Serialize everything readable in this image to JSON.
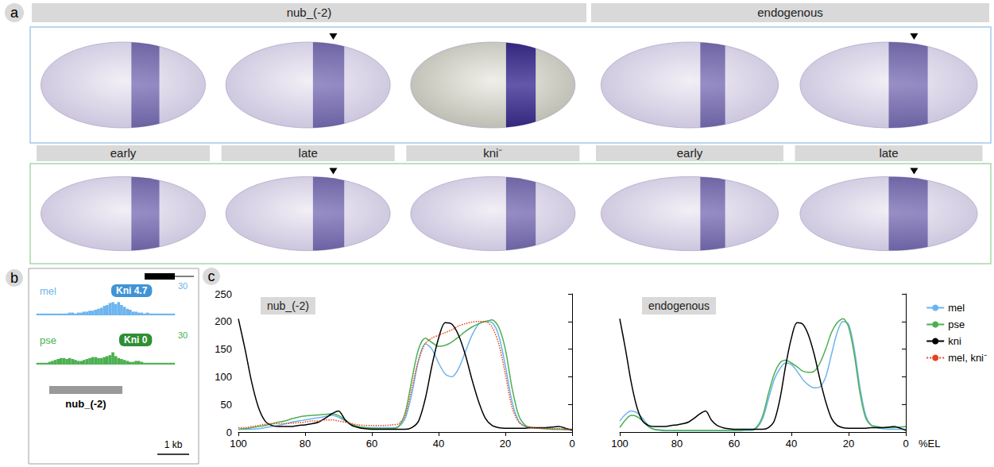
{
  "panels": {
    "a": {
      "letter": "a",
      "headers": [
        "nub_(-2)",
        "endogenous"
      ],
      "column_labels": [
        "early",
        "late",
        "kni⁻",
        "early",
        "late"
      ]
    },
    "b": {
      "letter": "b",
      "region_label": "nub_(-2)",
      "scale_label": "1 kb"
    },
    "c": {
      "letter": "c"
    }
  },
  "chart_data": [
    {
      "type": "bar",
      "title": "mel",
      "color": "#6cb4ee",
      "values": [
        1,
        1,
        1,
        1,
        1,
        1,
        1,
        1,
        1,
        1,
        1,
        2,
        2,
        1,
        2,
        2,
        3,
        3,
        4,
        4,
        5,
        6,
        7,
        9,
        10,
        12,
        13,
        11,
        13,
        10,
        8,
        6,
        5,
        3,
        3,
        2,
        2,
        1,
        2,
        1,
        1,
        1,
        1,
        1,
        1,
        1,
        1,
        1
      ],
      "ylim": [
        0,
        30
      ],
      "yticks": [
        30
      ],
      "tick_labels": "y",
      "annotations": [
        "Kni 4.7"
      ]
    },
    {
      "type": "bar",
      "title": "pse",
      "color": "#4caf50",
      "values": [
        1,
        1,
        1,
        1,
        2,
        3,
        4,
        5,
        6,
        6,
        5,
        6,
        5,
        4,
        3,
        3,
        4,
        5,
        6,
        7,
        7,
        6,
        6,
        7,
        8,
        9,
        12,
        8,
        6,
        5,
        4,
        3,
        2,
        2,
        3,
        3,
        2,
        1,
        1,
        1,
        1,
        1,
        1,
        1,
        1,
        1,
        1,
        1
      ],
      "ylim": [
        0,
        30
      ],
      "yticks": [
        30
      ],
      "tick_labels": "y",
      "annotations": [
        "Kni 0"
      ]
    },
    {
      "type": "line",
      "title": "nub_(-2)",
      "x": [
        100,
        98,
        96,
        94,
        92,
        90,
        88,
        86,
        84,
        82,
        80,
        78,
        76,
        74,
        72,
        70,
        68,
        66,
        64,
        62,
        60,
        58,
        56,
        54,
        52,
        50,
        48,
        46,
        44,
        42,
        40,
        38,
        36,
        34,
        32,
        30,
        28,
        26,
        24,
        22,
        20,
        18,
        16,
        14,
        12,
        10,
        8,
        6,
        4,
        2,
        0
      ],
      "series": [
        {
          "name": "mel",
          "color": "#6cb4ee",
          "line_style": "solid",
          "values": [
            5,
            5,
            5,
            6,
            8,
            10,
            12,
            15,
            18,
            20,
            22,
            24,
            26,
            28,
            30,
            27,
            20,
            12,
            9,
            8,
            8,
            8,
            8,
            8,
            10,
            25,
            70,
            130,
            160,
            150,
            125,
            105,
            100,
            115,
            145,
            175,
            195,
            200,
            198,
            175,
            120,
            55,
            20,
            10,
            8,
            7,
            6,
            5,
            5,
            4,
            4
          ]
        },
        {
          "name": "pse",
          "color": "#4caf50",
          "line_style": "solid",
          "values": [
            5,
            6,
            8,
            10,
            12,
            15,
            18,
            20,
            24,
            27,
            29,
            30,
            31,
            32,
            33,
            30,
            22,
            14,
            10,
            8,
            7,
            6,
            6,
            6,
            10,
            35,
            95,
            150,
            170,
            162,
            155,
            157,
            163,
            172,
            182,
            190,
            196,
            200,
            203,
            190,
            150,
            80,
            30,
            12,
            8,
            7,
            6,
            5,
            5,
            5,
            5
          ]
        },
        {
          "name": "kni",
          "color": "#000000",
          "line_style": "solid",
          "values": [
            205,
            150,
            90,
            45,
            20,
            12,
            10,
            10,
            10,
            12,
            13,
            15,
            18,
            25,
            33,
            38,
            22,
            12,
            8,
            6,
            5,
            5,
            5,
            5,
            5,
            5,
            8,
            20,
            60,
            120,
            170,
            198,
            195,
            175,
            140,
            95,
            55,
            25,
            12,
            8,
            7,
            7,
            7,
            7,
            8,
            8,
            8,
            9,
            10,
            7,
            3
          ]
        },
        {
          "name": "mel, kni⁻",
          "color": "#e8431c",
          "line_style": "dotted",
          "values": [
            8,
            8,
            10,
            12,
            14,
            15,
            15,
            15,
            16,
            17,
            18,
            20,
            20,
            22,
            22,
            20,
            18,
            15,
            13,
            12,
            12,
            12,
            12,
            13,
            15,
            30,
            80,
            130,
            160,
            170,
            175,
            180,
            185,
            192,
            196,
            199,
            200,
            200,
            190,
            160,
            105,
            45,
            18,
            10,
            8,
            7,
            7,
            6,
            6,
            5,
            5
          ]
        }
      ],
      "xlim": [
        100,
        0
      ],
      "xticks": [
        100,
        80,
        60,
        40,
        20,
        0
      ],
      "ylim": [
        0,
        250
      ],
      "yticks": [
        0,
        50,
        100,
        150,
        200,
        250
      ]
    },
    {
      "type": "line",
      "title": "endogenous",
      "xlabel": "%EL",
      "x": [
        100,
        98,
        96,
        94,
        92,
        90,
        88,
        86,
        84,
        82,
        80,
        78,
        76,
        74,
        72,
        70,
        68,
        66,
        64,
        62,
        60,
        58,
        56,
        54,
        52,
        50,
        48,
        46,
        44,
        42,
        40,
        38,
        36,
        34,
        32,
        30,
        28,
        26,
        24,
        22,
        20,
        18,
        16,
        14,
        12,
        10,
        8,
        6,
        4,
        2,
        0
      ],
      "series": [
        {
          "name": "mel",
          "color": "#6cb4ee",
          "line_style": "solid",
          "values": [
            20,
            32,
            38,
            35,
            25,
            12,
            5,
            3,
            2,
            2,
            2,
            2,
            2,
            2,
            2,
            2,
            2,
            2,
            2,
            2,
            2,
            2,
            3,
            3,
            8,
            25,
            60,
            95,
            115,
            125,
            122,
            110,
            95,
            85,
            80,
            82,
            100,
            140,
            180,
            200,
            195,
            150,
            80,
            30,
            12,
            8,
            6,
            5,
            5,
            5,
            5
          ]
        },
        {
          "name": "pse",
          "color": "#4caf50",
          "line_style": "solid",
          "values": [
            8,
            22,
            30,
            28,
            20,
            10,
            5,
            4,
            3,
            3,
            3,
            3,
            3,
            3,
            3,
            3,
            3,
            3,
            3,
            3,
            3,
            3,
            4,
            4,
            10,
            30,
            70,
            105,
            125,
            130,
            125,
            118,
            110,
            108,
            110,
            125,
            150,
            180,
            198,
            205,
            190,
            140,
            70,
            25,
            12,
            10,
            8,
            8,
            8,
            9,
            10
          ]
        },
        {
          "name": "kni",
          "color": "#000000",
          "line_style": "solid",
          "values": [
            205,
            150,
            90,
            45,
            20,
            12,
            10,
            10,
            10,
            12,
            13,
            15,
            18,
            25,
            33,
            38,
            22,
            12,
            8,
            6,
            5,
            5,
            5,
            5,
            5,
            5,
            8,
            20,
            60,
            120,
            170,
            198,
            195,
            175,
            140,
            95,
            55,
            25,
            12,
            8,
            7,
            7,
            7,
            7,
            8,
            8,
            8,
            9,
            10,
            7,
            3
          ]
        }
      ],
      "xlim": [
        100,
        0
      ],
      "xticks": [
        100,
        80,
        60,
        40,
        20,
        0
      ],
      "ylim": [
        0,
        250
      ],
      "yticks": [
        0,
        50,
        100,
        150,
        200,
        250
      ],
      "tick_labels": "x",
      "legend": "right"
    }
  ]
}
